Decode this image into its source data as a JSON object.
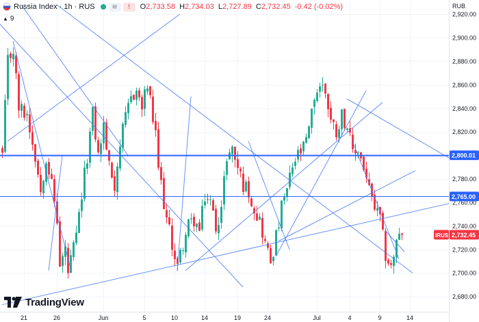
{
  "header": {
    "symbol": "Russia Index · 1h · RUS",
    "open_label": "O",
    "open": "2,733.58",
    "high_label": "H",
    "high": "2,734.03",
    "low_label": "L",
    "low": "2,727.89",
    "close_label": "C",
    "close": "2,732.45",
    "change": "-0.42 (-0.02%)",
    "pill_eye": "≋",
    "pill_alert": "!"
  },
  "indicator_count": "9",
  "currency": "RUB",
  "logo_text": "TradingView",
  "chart_data": {
    "type": "candlestick",
    "title": "Russia Index · 1h · RUS",
    "ylim": [
      2667,
      2932
    ],
    "y_ticks": [
      2920,
      2900,
      2880,
      2860,
      2840,
      2820,
      2780,
      2760,
      2740,
      2720,
      2700,
      2680
    ],
    "y_tick_labels": [
      "2,920.00",
      "2,900.00",
      "2,880.00",
      "2,860.00",
      "2,840.00",
      "2,820.00",
      "2,780.00",
      "2,760.00",
      "2,740.00",
      "2,720.00",
      "2,700.00",
      "2,680.00"
    ],
    "x_labels": [
      "21",
      "26",
      "Jun",
      "5",
      "10",
      "14",
      "19",
      "24",
      "Jul",
      "4",
      "9",
      "14"
    ],
    "x_label_index": [
      8,
      20,
      37,
      52,
      63,
      74,
      86,
      97,
      115,
      127,
      138,
      149
    ],
    "last_index": 146,
    "horizontal_levels": [
      {
        "value": 2800.01,
        "label": "2,800.01",
        "color": "#2962ff"
      },
      {
        "value": 2765.0,
        "label": "2,765.00",
        "color": "#2962ff"
      }
    ],
    "last_price": {
      "value": 2732.45,
      "label": "2,732.45",
      "tag": "IRUS",
      "color": "#f23645"
    },
    "anchors": [
      [
        0,
        2800
      ],
      [
        2,
        2880
      ],
      [
        4,
        2890
      ],
      [
        6,
        2840
      ],
      [
        9,
        2835
      ],
      [
        12,
        2800
      ],
      [
        14,
        2770
      ],
      [
        16,
        2800
      ],
      [
        18,
        2775
      ],
      [
        20,
        2745
      ],
      [
        21,
        2705
      ],
      [
        23,
        2720
      ],
      [
        24,
        2700
      ],
      [
        27,
        2730
      ],
      [
        29,
        2765
      ],
      [
        31,
        2800
      ],
      [
        33,
        2835
      ],
      [
        35,
        2800
      ],
      [
        37,
        2825
      ],
      [
        39,
        2790
      ],
      [
        41,
        2775
      ],
      [
        43,
        2810
      ],
      [
        45,
        2830
      ],
      [
        47,
        2850
      ],
      [
        49,
        2855
      ],
      [
        51,
        2840
      ],
      [
        53,
        2860
      ],
      [
        54,
        2845
      ],
      [
        56,
        2815
      ],
      [
        57,
        2790
      ],
      [
        58,
        2775
      ],
      [
        60,
        2745
      ],
      [
        62,
        2725
      ],
      [
        64,
        2705
      ],
      [
        66,
        2725
      ],
      [
        68,
        2740
      ],
      [
        70,
        2745
      ],
      [
        72,
        2735
      ],
      [
        74,
        2765
      ],
      [
        76,
        2760
      ],
      [
        78,
        2740
      ],
      [
        80,
        2755
      ],
      [
        82,
        2800
      ],
      [
        84,
        2805
      ],
      [
        86,
        2790
      ],
      [
        88,
        2775
      ],
      [
        90,
        2770
      ],
      [
        92,
        2755
      ],
      [
        94,
        2745
      ],
      [
        96,
        2725
      ],
      [
        98,
        2710
      ],
      [
        100,
        2730
      ],
      [
        102,
        2755
      ],
      [
        104,
        2770
      ],
      [
        106,
        2790
      ],
      [
        108,
        2800
      ],
      [
        110,
        2805
      ],
      [
        112,
        2820
      ],
      [
        114,
        2850
      ],
      [
        116,
        2860
      ],
      [
        118,
        2855
      ],
      [
        120,
        2830
      ],
      [
        122,
        2820
      ],
      [
        124,
        2835
      ],
      [
        126,
        2825
      ],
      [
        128,
        2800
      ],
      [
        130,
        2805
      ],
      [
        132,
        2790
      ],
      [
        134,
        2770
      ],
      [
        136,
        2755
      ],
      [
        138,
        2745
      ],
      [
        140,
        2715
      ],
      [
        142,
        2705
      ],
      [
        144,
        2725
      ],
      [
        146,
        2732.45
      ]
    ],
    "trendlines": [
      {
        "i1": 4,
        "v1": 2897,
        "i2": 25,
        "v2": 2704
      },
      {
        "i1": -1,
        "v1": 2912,
        "i2": 88,
        "v2": 2688
      },
      {
        "i1": 2,
        "v1": 2812,
        "i2": 65,
        "v2": 2920
      },
      {
        "i1": 64,
        "v1": 2702,
        "i2": 69,
        "v2": 2850
      },
      {
        "i1": 17,
        "v1": 2702,
        "i2": 22,
        "v2": 2800
      },
      {
        "i1": 7,
        "v1": 2928,
        "i2": 46,
        "v2": 2800
      },
      {
        "i1": 20,
        "v1": 2928,
        "i2": 150,
        "v2": 2700
      },
      {
        "i1": 90,
        "v1": 2812,
        "i2": 105,
        "v2": 2720
      },
      {
        "i1": 67,
        "v1": 2702,
        "i2": 139,
        "v2": 2845
      },
      {
        "i1": 100,
        "v1": 2714,
        "i2": 133,
        "v2": 2855
      },
      {
        "i1": 101,
        "v1": 2727,
        "i2": 151,
        "v2": 2787
      },
      {
        "i1": 0,
        "v1": 2673,
        "i2": 169,
        "v2": 2762
      },
      {
        "i1": 126,
        "v1": 2848,
        "i2": 172,
        "v2": 2786
      },
      {
        "i1": 128,
        "v1": 2812,
        "i2": 145,
        "v2": 2712
      },
      {
        "i1": 140,
        "v1": 2736,
        "i2": 147,
        "v2": 2718
      }
    ]
  }
}
